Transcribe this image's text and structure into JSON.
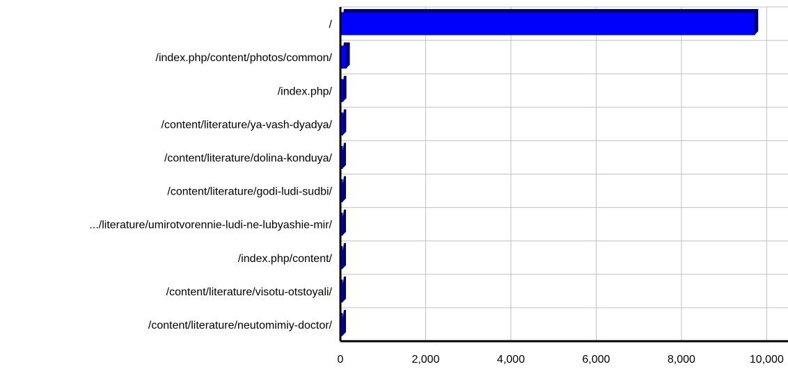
{
  "chart_data": {
    "type": "bar",
    "orientation": "horizontal",
    "categories": [
      "/",
      "/index.php/content/photos/common/",
      "/index.php/",
      "/content/literature/ya-vash-dyadya/",
      "/content/literature/dolina-konduya/",
      "/content/literature/godi-ludi-sudbi/",
      ".../literature/umirotvorennie-ludi-ne-lubyashie-mir/",
      "/index.php/content/",
      "/content/literature/visotu-otstoyali/",
      "/content/literature/neutomimiy-doctor/"
    ],
    "values": [
      9720,
      140,
      60,
      55,
      45,
      40,
      35,
      30,
      28,
      25
    ],
    "xlim": [
      0,
      10500
    ],
    "xticks": [
      0,
      2000,
      4000,
      6000,
      8000,
      10000
    ],
    "xtick_labels": [
      "0",
      "2,000",
      "4,000",
      "6,000",
      "8,000",
      "10,000"
    ],
    "grid": true,
    "title": "",
    "xlabel": "",
    "ylabel": "",
    "colors": {
      "bar_fill": "#0000ff",
      "bar_shadow": "#00007a",
      "grid": "#c0c0c0",
      "axis": "#000000"
    }
  }
}
